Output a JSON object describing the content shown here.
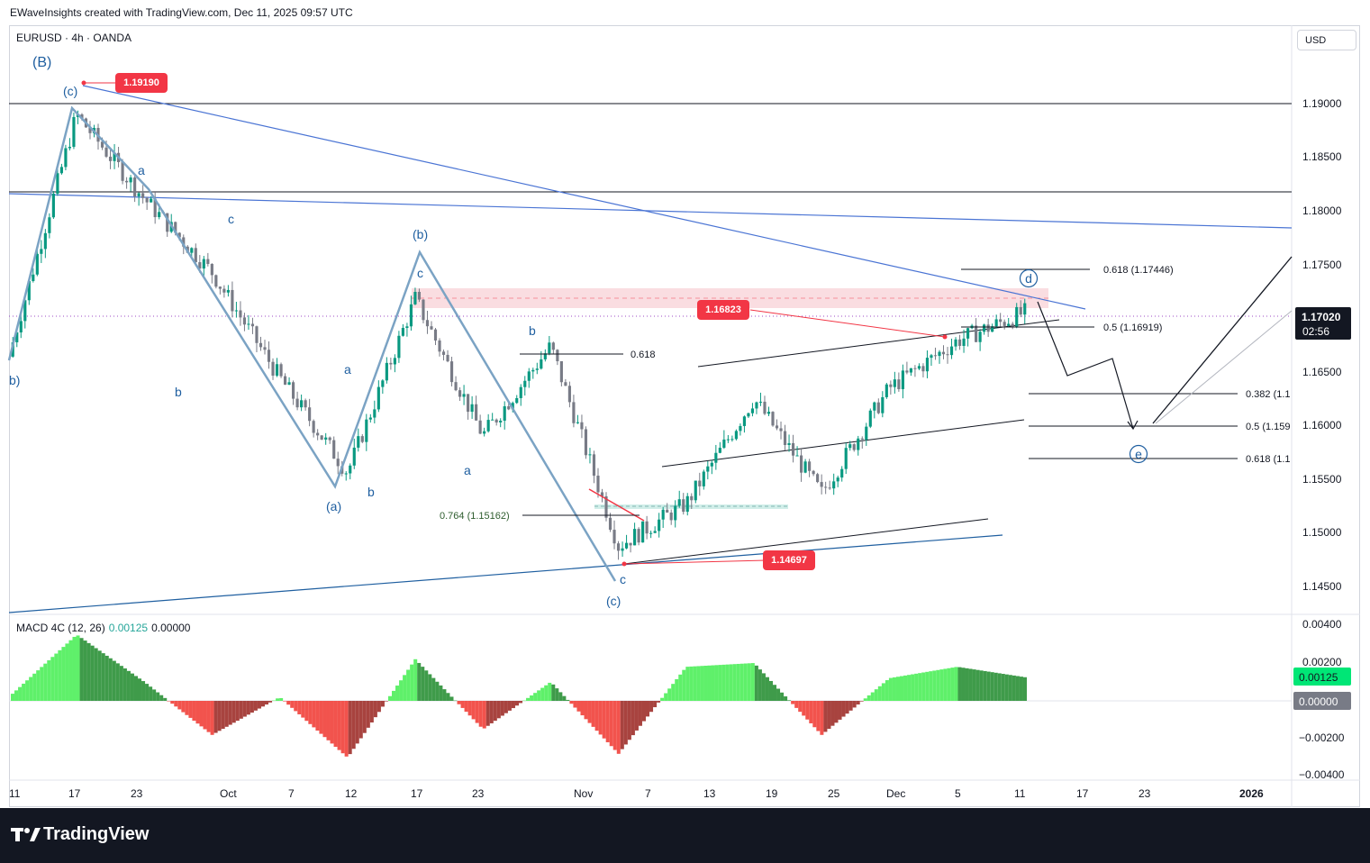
{
  "header": {
    "text": "EWaveInsights created with TradingView.com, Dec 11, 2025 09:57 UTC"
  },
  "symbol": {
    "title": "EURUSD · 4h · OANDA",
    "currency": "USD"
  },
  "colors": {
    "up": "#089981",
    "down": "#787b86",
    "blue_line": "#4a74d4",
    "wave_line": "#7ba3c4",
    "label_red": "#f23645",
    "label_blue": "#1f5fa0",
    "macd_up": "#5ff06a",
    "macd_up_dark": "#3f9b4a",
    "macd_down": "#f2534d",
    "macd_down_dark": "#a8433f"
  },
  "price_axis": {
    "ticks": [
      "1.19000",
      "1.18500",
      "1.18000",
      "1.17500",
      "1.16500",
      "1.16000",
      "1.15500",
      "1.15000",
      "1.14500"
    ],
    "current_price": "1.17020",
    "countdown": "02:56"
  },
  "macd_axis": {
    "ticks": [
      "0.00400",
      "0.00200",
      "−0.00200",
      "−0.00400"
    ],
    "macd_value": "0.00125",
    "signal_value": "0.00000"
  },
  "time_axis": {
    "ticks": [
      "11",
      "17",
      "23",
      "Oct",
      "7",
      "12",
      "17",
      "23",
      "Nov",
      "7",
      "13",
      "19",
      "25",
      "Dec",
      "5",
      "11",
      "17",
      "23",
      "2026"
    ]
  },
  "macd_legend": {
    "name": "MACD 4C (12, 26)",
    "value1": "0.00125",
    "value2": "0.00000"
  },
  "price_badges": {
    "high": "1.19190",
    "mid": "1.16823",
    "low": "1.14697"
  },
  "fib_labels": {
    "f618a": "0.618",
    "f764": "0.764 (1.15162)",
    "f618top": "0.618 (1.17446)",
    "f05top": "0.5 (1.16919)",
    "f382": "0.382 (1.1",
    "f05": "0.5 (1.159",
    "f618b": "0.618 (1.1"
  },
  "wave_labels": {
    "B": "(B)",
    "c_big": "(c)",
    "a1": "a",
    "b1": "b",
    "c1": "c",
    "a_par": "(a)",
    "a2": "a",
    "b2": "b",
    "b_par": "(b)",
    "c2": "c",
    "b3": "b",
    "a3": "a",
    "c3": "c",
    "c_par2": "(c)",
    "d_circ": "d",
    "e_circ": "e",
    "left_edge": "b)"
  },
  "footer": {
    "logo_text": "TradingView"
  },
  "chart_data": {
    "type": "candlestick",
    "title": "EURUSD · 4h · OANDA",
    "xlabel": "",
    "ylabel": "",
    "ylim": [
      1.1415,
      1.1975
    ],
    "x": [
      "Sep 11",
      "Sep 17",
      "Sep 23",
      "Oct 1",
      "Oct 7",
      "Oct 12",
      "Oct 17",
      "Oct 23",
      "Nov 1",
      "Nov 7",
      "Nov 13",
      "Nov 19",
      "Nov 25",
      "Dec 1",
      "Dec 5",
      "Dec 11"
    ],
    "series": [
      {
        "name": "price",
        "values": [
          1.166,
          1.189,
          1.181,
          1.174,
          1.164,
          1.155,
          1.1715,
          1.1585,
          1.167,
          1.148,
          1.152,
          1.162,
          1.153,
          1.163,
          1.1675,
          1.1702
        ]
      },
      {
        "name": "MACD 4C (12, 26)",
        "values": [
          0.0002,
          0.0035,
          0.001,
          -0.0018,
          0.0002,
          -0.003,
          0.0022,
          -0.0015,
          0.001,
          -0.0028,
          0.0018,
          0.002,
          -0.0018,
          0.0012,
          0.0018,
          0.00125
        ]
      }
    ],
    "price_levels": {
      "high": 1.1919,
      "mid": 1.16823,
      "low": 1.14697,
      "current": 1.1702
    },
    "fib_levels": {
      "0.618_top": 1.17446,
      "0.5_top": 1.16919,
      "0.764": 1.15162
    },
    "legend": "top-left",
    "grid": false
  }
}
